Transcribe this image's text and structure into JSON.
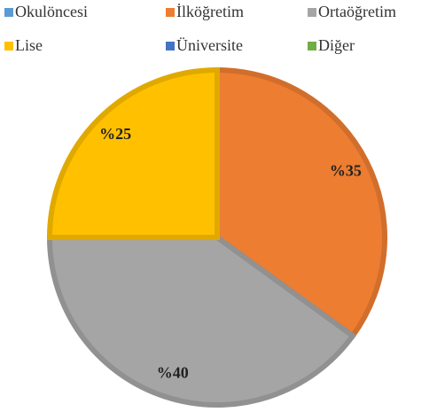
{
  "chart_data": {
    "type": "pie",
    "categories": [
      "Okulöncesi",
      "İlköğretim",
      "Ortaöğretim",
      "Lise",
      "Üniversite",
      "Diğer"
    ],
    "values": [
      0,
      35,
      40,
      25,
      0,
      0
    ],
    "value_labels": [
      null,
      "%35",
      "%40",
      "%25",
      null,
      null
    ],
    "colors": [
      "#5b9bd5",
      "#ed7d31",
      "#a5a5a5",
      "#ffc000",
      "#4472c4",
      "#70ad47"
    ],
    "legend": "top"
  }
}
